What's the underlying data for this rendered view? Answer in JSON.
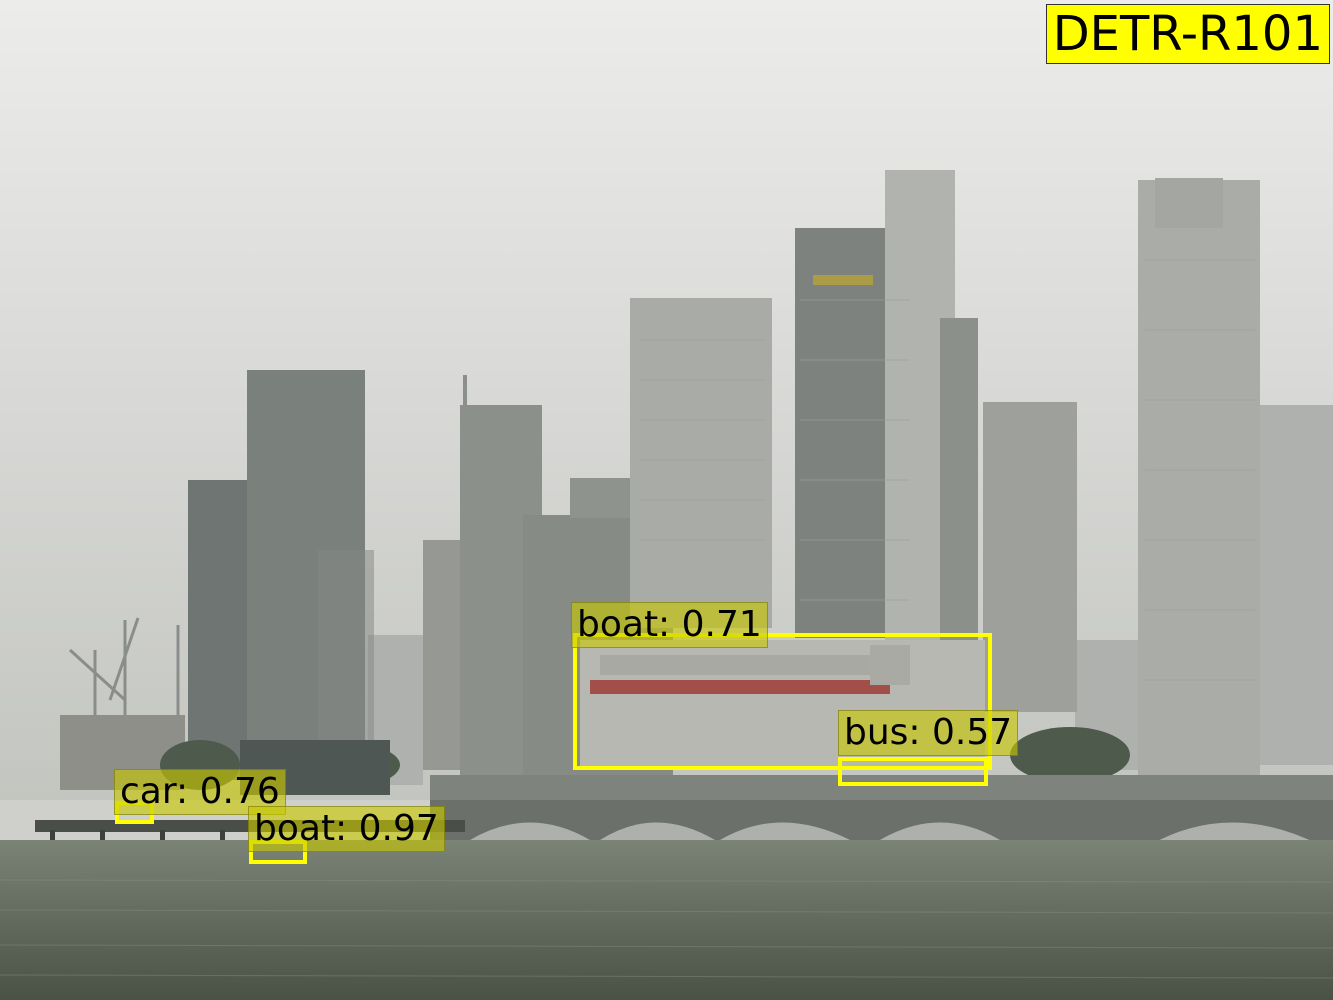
{
  "model_tag": "DETR-R101",
  "detections": [
    {
      "label": "boat: 0.71",
      "class": "boat",
      "score": 0.71
    },
    {
      "label": "bus: 0.57",
      "class": "bus",
      "score": 0.57
    },
    {
      "label": "car: 0.76",
      "class": "car",
      "score": 0.76
    },
    {
      "label": "boat: 0.97",
      "class": "boat",
      "score": 0.97
    }
  ],
  "colors": {
    "box": "#ffff00",
    "label_bg": "#c8c800",
    "sky": "#e8e8e6",
    "water": "#5a6356"
  }
}
